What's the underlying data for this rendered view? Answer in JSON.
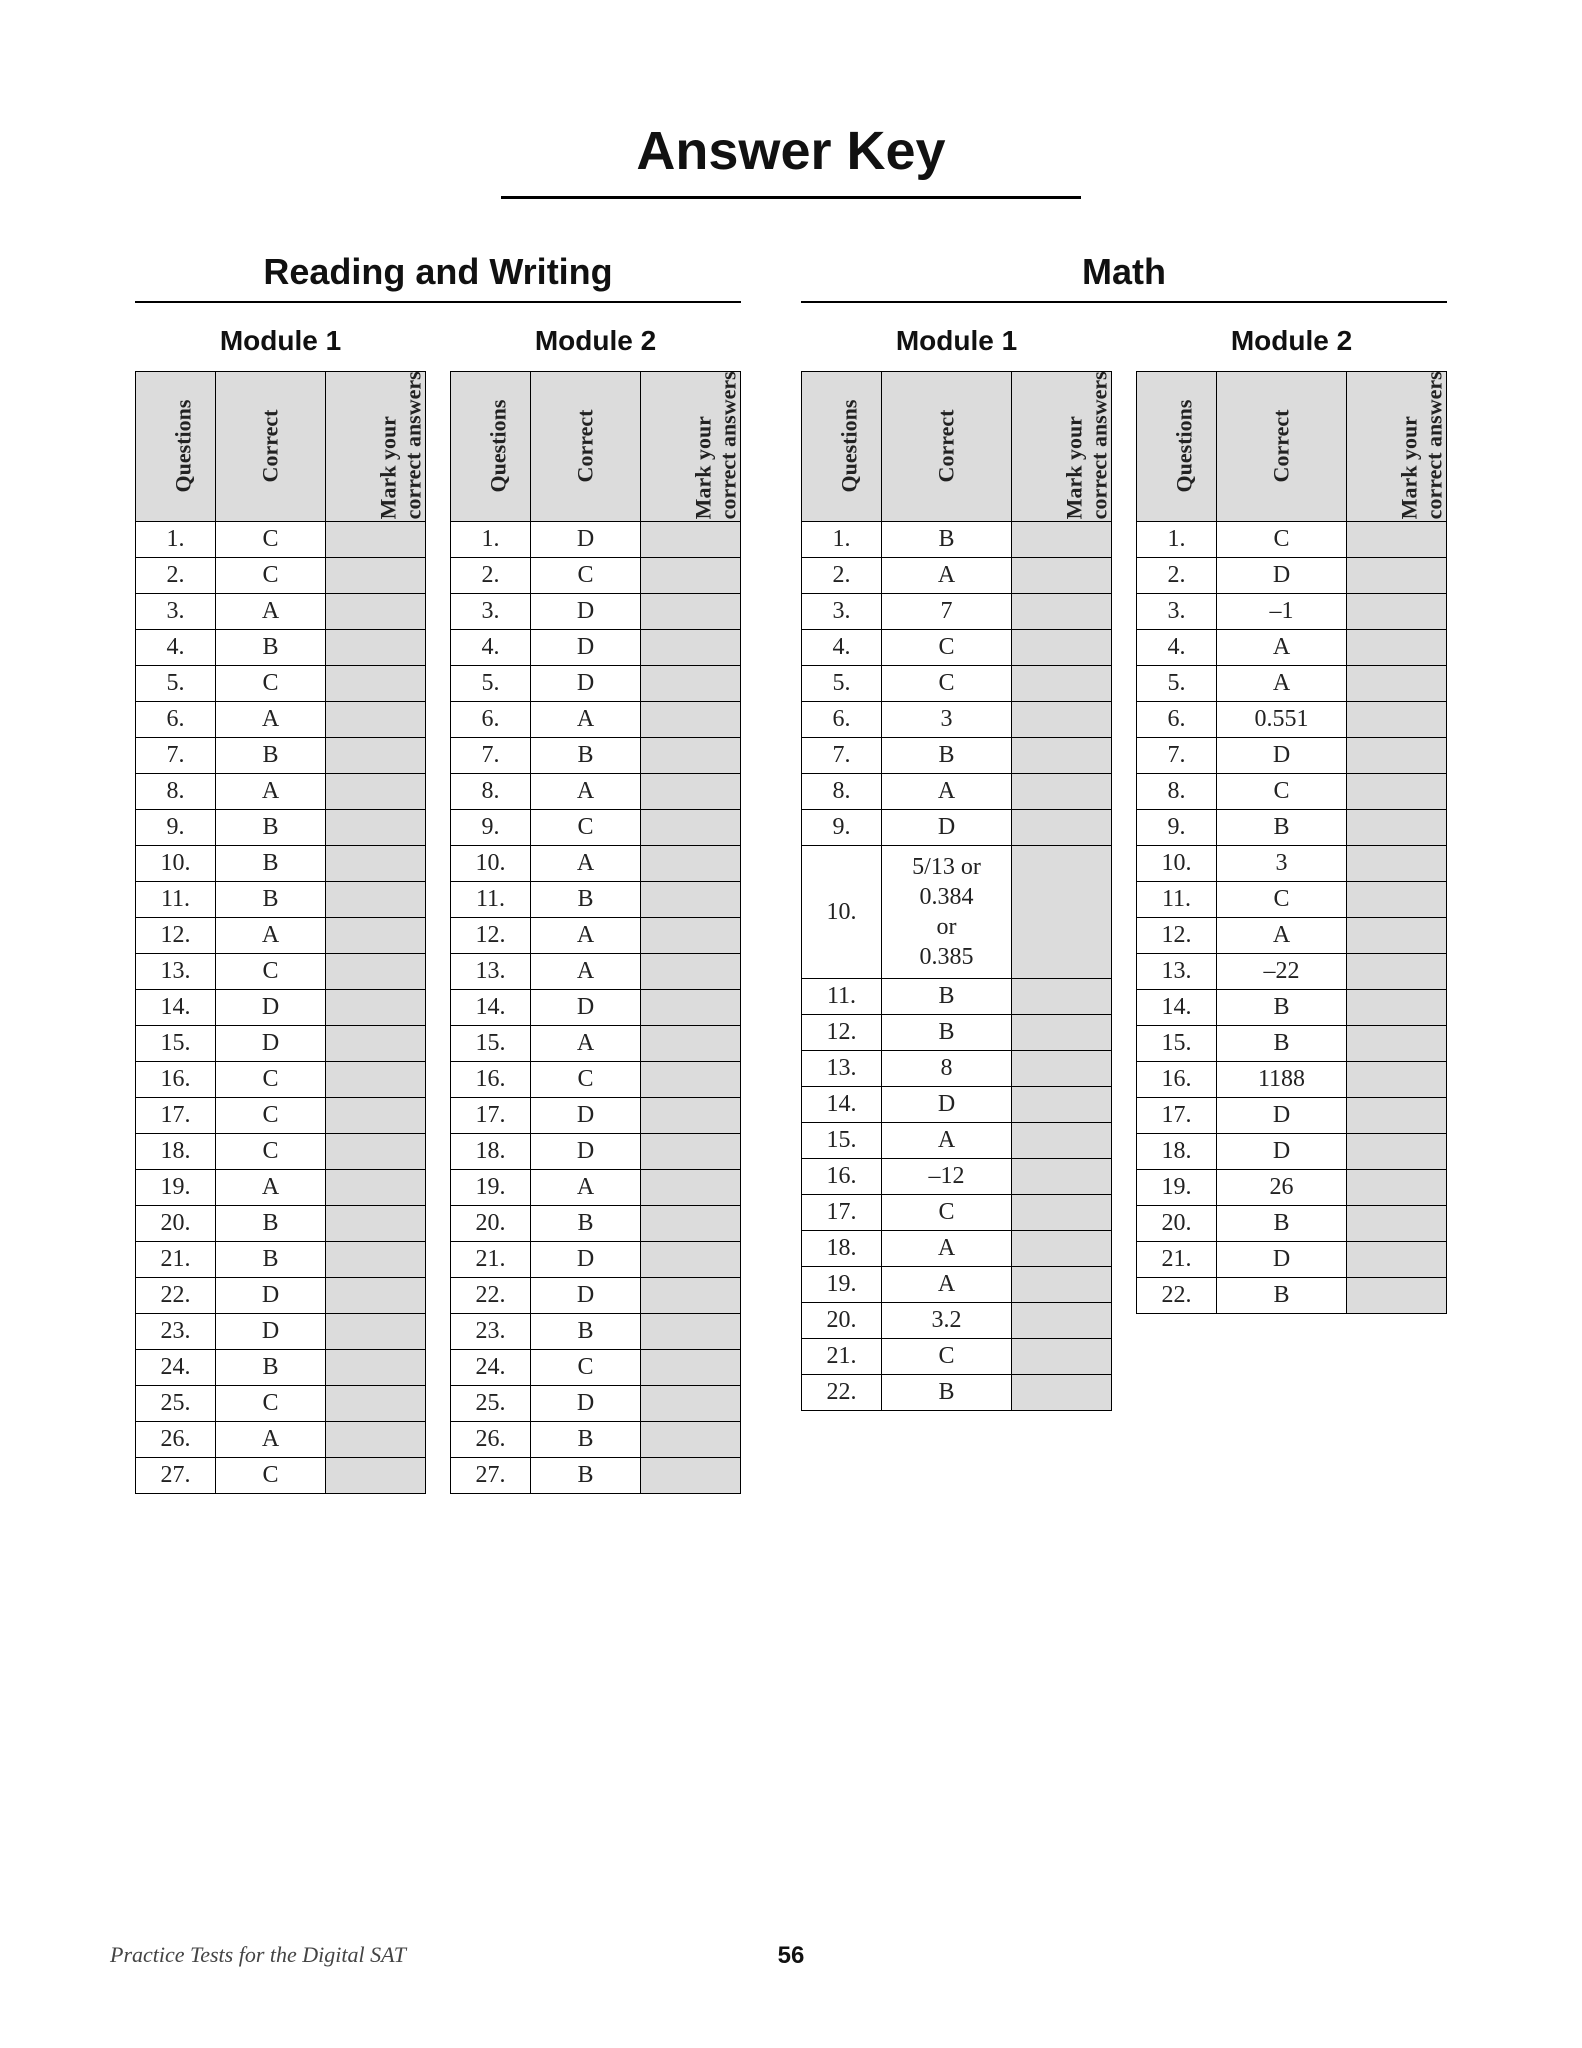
{
  "page": {
    "title": "Answer Key",
    "footer_text": "Practice Tests for the Digital SAT",
    "page_number": "56",
    "colors": {
      "background": "#ffffff",
      "text": "#111111",
      "header_fill": "#dcdcdc",
      "border": "#000000"
    },
    "fonts": {
      "heading_family": "Arial, Helvetica, sans-serif",
      "body_family": "Times New Roman, Times, serif",
      "title_size_pt": 40,
      "section_title_size_pt": 27,
      "module_title_size_pt": 21,
      "cell_size_pt": 18
    }
  },
  "table_headers": {
    "questions": "Questions",
    "correct": "Correct",
    "mark": "Mark your\ncorrect answers"
  },
  "sections": [
    {
      "title": "Reading and Writing",
      "modules": [
        {
          "title": "Module 1",
          "wide": false,
          "rows": [
            {
              "q": "1.",
              "c": "C"
            },
            {
              "q": "2.",
              "c": "C"
            },
            {
              "q": "3.",
              "c": "A"
            },
            {
              "q": "4.",
              "c": "B"
            },
            {
              "q": "5.",
              "c": "C"
            },
            {
              "q": "6.",
              "c": "A"
            },
            {
              "q": "7.",
              "c": "B"
            },
            {
              "q": "8.",
              "c": "A"
            },
            {
              "q": "9.",
              "c": "B"
            },
            {
              "q": "10.",
              "c": "B"
            },
            {
              "q": "11.",
              "c": "B"
            },
            {
              "q": "12.",
              "c": "A"
            },
            {
              "q": "13.",
              "c": "C"
            },
            {
              "q": "14.",
              "c": "D"
            },
            {
              "q": "15.",
              "c": "D"
            },
            {
              "q": "16.",
              "c": "C"
            },
            {
              "q": "17.",
              "c": "C"
            },
            {
              "q": "18.",
              "c": "C"
            },
            {
              "q": "19.",
              "c": "A"
            },
            {
              "q": "20.",
              "c": "B"
            },
            {
              "q": "21.",
              "c": "B"
            },
            {
              "q": "22.",
              "c": "D"
            },
            {
              "q": "23.",
              "c": "D"
            },
            {
              "q": "24.",
              "c": "B"
            },
            {
              "q": "25.",
              "c": "C"
            },
            {
              "q": "26.",
              "c": "A"
            },
            {
              "q": "27.",
              "c": "C"
            }
          ]
        },
        {
          "title": "Module 2",
          "wide": false,
          "rows": [
            {
              "q": "1.",
              "c": "D"
            },
            {
              "q": "2.",
              "c": "C"
            },
            {
              "q": "3.",
              "c": "D"
            },
            {
              "q": "4.",
              "c": "D"
            },
            {
              "q": "5.",
              "c": "D"
            },
            {
              "q": "6.",
              "c": "A"
            },
            {
              "q": "7.",
              "c": "B"
            },
            {
              "q": "8.",
              "c": "A"
            },
            {
              "q": "9.",
              "c": "C"
            },
            {
              "q": "10.",
              "c": "A"
            },
            {
              "q": "11.",
              "c": "B"
            },
            {
              "q": "12.",
              "c": "A"
            },
            {
              "q": "13.",
              "c": "A"
            },
            {
              "q": "14.",
              "c": "D"
            },
            {
              "q": "15.",
              "c": "A"
            },
            {
              "q": "16.",
              "c": "C"
            },
            {
              "q": "17.",
              "c": "D"
            },
            {
              "q": "18.",
              "c": "D"
            },
            {
              "q": "19.",
              "c": "A"
            },
            {
              "q": "20.",
              "c": "B"
            },
            {
              "q": "21.",
              "c": "D"
            },
            {
              "q": "22.",
              "c": "D"
            },
            {
              "q": "23.",
              "c": "B"
            },
            {
              "q": "24.",
              "c": "C"
            },
            {
              "q": "25.",
              "c": "D"
            },
            {
              "q": "26.",
              "c": "B"
            },
            {
              "q": "27.",
              "c": "B"
            }
          ]
        }
      ]
    },
    {
      "title": "Math",
      "modules": [
        {
          "title": "Module 1",
          "wide": true,
          "rows": [
            {
              "q": "1.",
              "c": "B"
            },
            {
              "q": "2.",
              "c": "A"
            },
            {
              "q": "3.",
              "c": "7"
            },
            {
              "q": "4.",
              "c": "C"
            },
            {
              "q": "5.",
              "c": "C"
            },
            {
              "q": "6.",
              "c": "3"
            },
            {
              "q": "7.",
              "c": "B"
            },
            {
              "q": "8.",
              "c": "A"
            },
            {
              "q": "9.",
              "c": "D"
            },
            {
              "q": "10.",
              "c": "5/13 or\n0.384\nor\n0.385",
              "multi": true
            },
            {
              "q": "11.",
              "c": "B"
            },
            {
              "q": "12.",
              "c": "B"
            },
            {
              "q": "13.",
              "c": "8"
            },
            {
              "q": "14.",
              "c": "D"
            },
            {
              "q": "15.",
              "c": "A"
            },
            {
              "q": "16.",
              "c": "–12"
            },
            {
              "q": "17.",
              "c": "C"
            },
            {
              "q": "18.",
              "c": "A"
            },
            {
              "q": "19.",
              "c": "A"
            },
            {
              "q": "20.",
              "c": "3.2"
            },
            {
              "q": "21.",
              "c": "C"
            },
            {
              "q": "22.",
              "c": "B"
            }
          ]
        },
        {
          "title": "Module 2",
          "wide": true,
          "rows": [
            {
              "q": "1.",
              "c": "C"
            },
            {
              "q": "2.",
              "c": "D"
            },
            {
              "q": "3.",
              "c": "–1"
            },
            {
              "q": "4.",
              "c": "A"
            },
            {
              "q": "5.",
              "c": "A"
            },
            {
              "q": "6.",
              "c": "0.551"
            },
            {
              "q": "7.",
              "c": "D"
            },
            {
              "q": "8.",
              "c": "C"
            },
            {
              "q": "9.",
              "c": "B"
            },
            {
              "q": "10.",
              "c": "3"
            },
            {
              "q": "11.",
              "c": "C"
            },
            {
              "q": "12.",
              "c": "A"
            },
            {
              "q": "13.",
              "c": "–22"
            },
            {
              "q": "14.",
              "c": "B"
            },
            {
              "q": "15.",
              "c": "B"
            },
            {
              "q": "16.",
              "c": "1188"
            },
            {
              "q": "17.",
              "c": "D"
            },
            {
              "q": "18.",
              "c": "D"
            },
            {
              "q": "19.",
              "c": "26"
            },
            {
              "q": "20.",
              "c": "B"
            },
            {
              "q": "21.",
              "c": "D"
            },
            {
              "q": "22.",
              "c": "B"
            }
          ]
        }
      ]
    }
  ]
}
